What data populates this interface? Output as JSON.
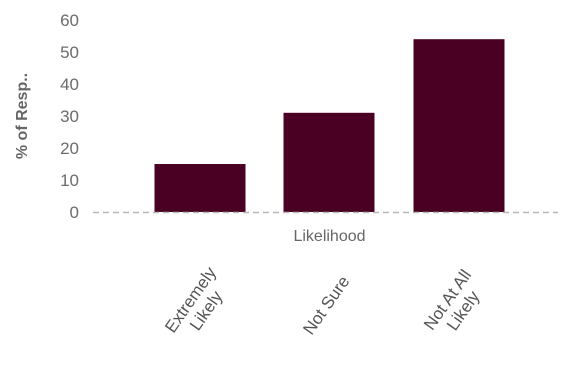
{
  "chart_data": {
    "type": "bar",
    "title": "",
    "xlabel": "Likelihood",
    "ylabel": "% of Resp..",
    "categories": [
      "Extremely Likely",
      "Not Sure",
      "Not At All Likely"
    ],
    "category_lines": [
      [
        "Extremely",
        "Likely"
      ],
      [
        "Not Sure"
      ],
      [
        "Not At All",
        "Likely"
      ]
    ],
    "values": [
      15,
      31,
      54
    ],
    "ylim": [
      0,
      60
    ],
    "yticks": [
      0,
      10,
      20,
      30,
      40,
      50,
      60
    ],
    "grid": false,
    "legend": "none",
    "colors": {
      "bar": "#4a0022",
      "axis_text": "#6b6b6b",
      "label_text": "#666666",
      "baseline": "#b8b8b8"
    }
  }
}
